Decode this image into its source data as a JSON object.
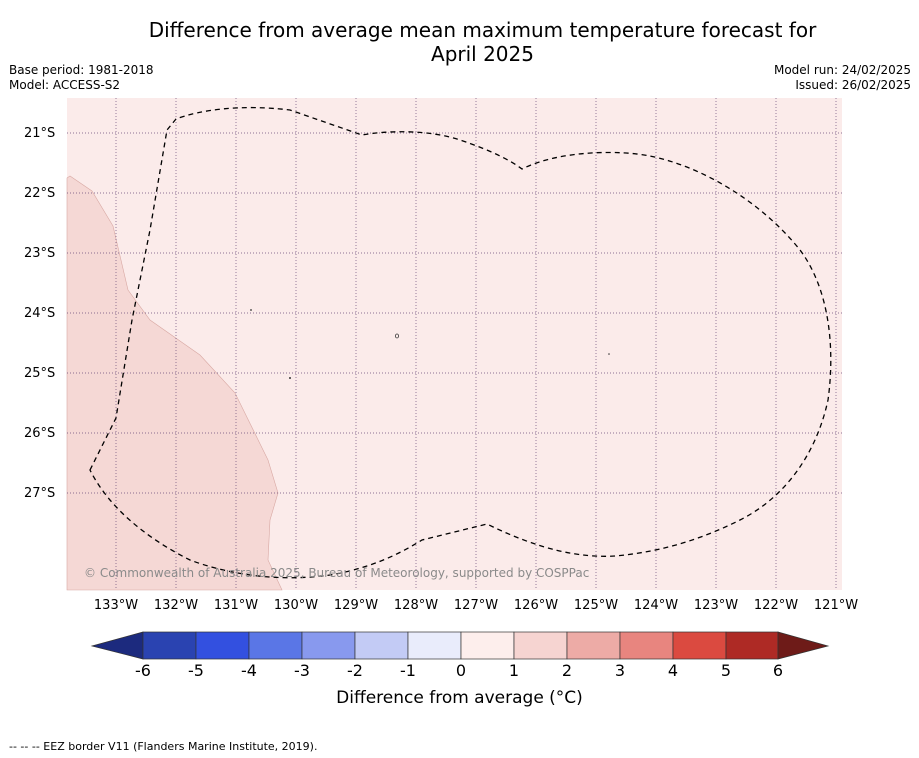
{
  "title_line1": "Difference from average mean maximum temperature forecast for",
  "title_line2": "April 2025",
  "base_period": "Base period: 1981-2018",
  "model": "Model: ACCESS-S2",
  "model_run": "Model run: 24/02/2025",
  "issued": "Issued: 26/02/2025",
  "copyright": "© Commonwealth of Australia 2025, Bureau of Meteorology, supported by COSPPac",
  "lat_labels": [
    "21°S",
    "22°S",
    "23°S",
    "24°S",
    "25°S",
    "26°S",
    "27°S"
  ],
  "lon_labels": [
    "133°W",
    "132°W",
    "131°W",
    "130°W",
    "129°W",
    "128°W",
    "127°W",
    "126°W",
    "125°W",
    "124°W",
    "123°W",
    "122°W",
    "121°W"
  ],
  "colorbar": {
    "ticks": [
      "-6",
      "-5",
      "-4",
      "-3",
      "-2",
      "-1",
      "0",
      "1",
      "2",
      "3",
      "4",
      "5",
      "6"
    ],
    "colors": [
      "#1c2a7e",
      "#2a43b1",
      "#3350e0",
      "#5a76e6",
      "#8899ee",
      "#c3cbf5",
      "#e9ecfb",
      "#fdeeec",
      "#f6d4d1",
      "#edaba6",
      "#e8857f",
      "#db4a40",
      "#ae2a25",
      "#6e1b18"
    ],
    "title": "Difference from average (°C)"
  },
  "fill_colors": {
    "zone_0_1": "#fbebea",
    "zone_1_2": "#f5d8d5"
  },
  "footnote": "-- -- -- EEZ border V11 (Flanders Marine Institute, 2019)."
}
